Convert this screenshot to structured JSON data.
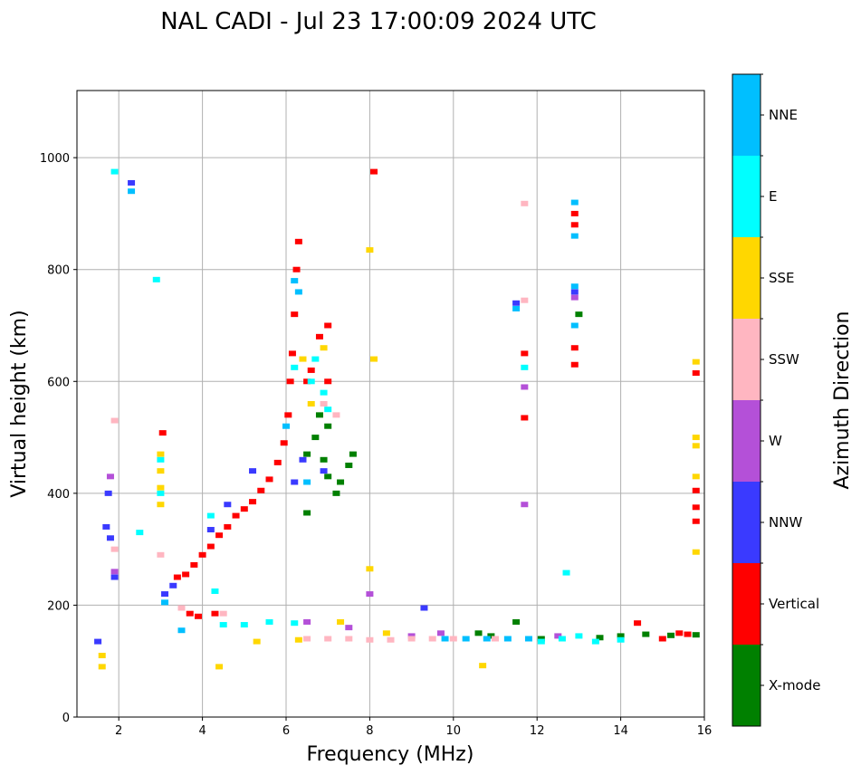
{
  "chart_data": {
    "type": "scatter",
    "title": "NAL CADI - Jul 23 17:00:09 2024 UTC",
    "xlabel": "Frequency (MHz)",
    "ylabel": "Virtual height (km)",
    "xlim": [
      1,
      16
    ],
    "ylim": [
      0,
      1120
    ],
    "xticks": [
      2,
      4,
      6,
      8,
      10,
      12,
      14,
      16
    ],
    "yticks": [
      0,
      200,
      400,
      600,
      800,
      1000
    ],
    "grid": true,
    "colorbar": {
      "title": "Azimuth Direction",
      "categories": [
        {
          "name": "X-mode",
          "color": "#008000"
        },
        {
          "name": "Vertical",
          "color": "#ff0000"
        },
        {
          "name": "NNW",
          "color": "#3a3aff"
        },
        {
          "name": "W",
          "color": "#b450d8"
        },
        {
          "name": "SSW",
          "color": "#ffb6c1"
        },
        {
          "name": "SSE",
          "color": "#ffd700"
        },
        {
          "name": "E",
          "color": "#00ffff"
        },
        {
          "name": "NNE",
          "color": "#00bfff"
        }
      ]
    },
    "series": [
      {
        "name": "Vertical",
        "points": [
          [
            3.05,
            508
          ],
          [
            3.4,
            250
          ],
          [
            3.6,
            255
          ],
          [
            3.8,
            272
          ],
          [
            4.0,
            290
          ],
          [
            4.2,
            305
          ],
          [
            4.4,
            325
          ],
          [
            4.6,
            340
          ],
          [
            4.8,
            360
          ],
          [
            5.0,
            372
          ],
          [
            5.2,
            385
          ],
          [
            5.4,
            405
          ],
          [
            5.6,
            425
          ],
          [
            5.8,
            455
          ],
          [
            5.95,
            490
          ],
          [
            6.05,
            540
          ],
          [
            6.1,
            600
          ],
          [
            6.15,
            650
          ],
          [
            6.2,
            720
          ],
          [
            6.25,
            800
          ],
          [
            6.3,
            850
          ],
          [
            6.5,
            600
          ],
          [
            6.6,
            620
          ],
          [
            6.8,
            680
          ],
          [
            7.0,
            700
          ],
          [
            7.0,
            600
          ],
          [
            8.1,
            975
          ],
          [
            12.9,
            900
          ],
          [
            12.9,
            880
          ],
          [
            12.9,
            660
          ],
          [
            12.9,
            630
          ],
          [
            11.7,
            650
          ],
          [
            11.7,
            535
          ],
          [
            15.8,
            615
          ],
          [
            15.8,
            405
          ],
          [
            15.8,
            375
          ],
          [
            15.8,
            350
          ],
          [
            3.7,
            185
          ],
          [
            3.9,
            180
          ],
          [
            4.3,
            185
          ],
          [
            14.4,
            168
          ],
          [
            15.0,
            140
          ],
          [
            15.4,
            150
          ],
          [
            15.6,
            148
          ]
        ]
      },
      {
        "name": "X-mode",
        "points": [
          [
            6.5,
            470
          ],
          [
            6.7,
            500
          ],
          [
            6.9,
            460
          ],
          [
            7.0,
            430
          ],
          [
            7.2,
            400
          ],
          [
            7.3,
            420
          ],
          [
            7.5,
            450
          ],
          [
            7.6,
            470
          ],
          [
            6.8,
            540
          ],
          [
            7.0,
            520
          ],
          [
            6.5,
            365
          ],
          [
            13.0,
            720
          ],
          [
            11.5,
            170
          ],
          [
            12.1,
            140
          ],
          [
            13.5,
            142
          ],
          [
            14.0,
            145
          ],
          [
            14.6,
            148
          ],
          [
            15.2,
            146
          ],
          [
            15.8,
            147
          ],
          [
            10.6,
            150
          ],
          [
            10.9,
            145
          ]
        ]
      },
      {
        "name": "NNW",
        "points": [
          [
            1.75,
            400
          ],
          [
            1.7,
            340
          ],
          [
            1.8,
            320
          ],
          [
            1.9,
            250
          ],
          [
            2.3,
            955
          ],
          [
            3.1,
            220
          ],
          [
            3.3,
            235
          ],
          [
            4.2,
            335
          ],
          [
            4.6,
            380
          ],
          [
            5.2,
            440
          ],
          [
            6.2,
            420
          ],
          [
            6.4,
            460
          ],
          [
            6.9,
            440
          ],
          [
            9.3,
            195
          ],
          [
            11.5,
            740
          ],
          [
            12.9,
            760
          ],
          [
            1.5,
            135
          ]
        ]
      },
      {
        "name": "W",
        "points": [
          [
            1.8,
            430
          ],
          [
            1.9,
            260
          ],
          [
            6.5,
            170
          ],
          [
            7.5,
            160
          ],
          [
            9.0,
            145
          ],
          [
            9.7,
            150
          ],
          [
            11.7,
            590
          ],
          [
            11.7,
            380
          ],
          [
            12.9,
            750
          ],
          [
            8.0,
            220
          ],
          [
            12.5,
            145
          ]
        ]
      },
      {
        "name": "SSW",
        "points": [
          [
            1.9,
            300
          ],
          [
            6.5,
            140
          ],
          [
            7.0,
            140
          ],
          [
            7.5,
            140
          ],
          [
            8.0,
            138
          ],
          [
            8.5,
            138
          ],
          [
            9.0,
            140
          ],
          [
            9.5,
            140
          ],
          [
            10.0,
            140
          ],
          [
            11.0,
            140
          ],
          [
            11.7,
            745
          ],
          [
            11.7,
            918
          ],
          [
            1.9,
            530
          ],
          [
            3.0,
            290
          ],
          [
            6.9,
            560
          ],
          [
            7.2,
            540
          ],
          [
            3.5,
            195
          ],
          [
            4.5,
            185
          ]
        ]
      },
      {
        "name": "SSE",
        "points": [
          [
            3.0,
            470
          ],
          [
            3.0,
            440
          ],
          [
            3.0,
            410
          ],
          [
            3.0,
            380
          ],
          [
            6.4,
            640
          ],
          [
            6.9,
            660
          ],
          [
            6.6,
            560
          ],
          [
            8.0,
            835
          ],
          [
            8.1,
            640
          ],
          [
            8.0,
            265
          ],
          [
            15.8,
            635
          ],
          [
            15.8,
            500
          ],
          [
            15.8,
            485
          ],
          [
            15.8,
            430
          ],
          [
            15.8,
            295
          ],
          [
            1.6,
            110
          ],
          [
            1.6,
            90
          ],
          [
            10.7,
            92
          ],
          [
            4.4,
            90
          ],
          [
            5.3,
            135
          ],
          [
            6.3,
            138
          ],
          [
            7.3,
            170
          ],
          [
            8.4,
            150
          ]
        ]
      },
      {
        "name": "E",
        "points": [
          [
            3.0,
            460
          ],
          [
            3.0,
            400
          ],
          [
            2.5,
            330
          ],
          [
            2.9,
            782
          ],
          [
            4.2,
            360
          ],
          [
            4.3,
            225
          ],
          [
            6.2,
            625
          ],
          [
            6.6,
            600
          ],
          [
            6.7,
            640
          ],
          [
            6.9,
            580
          ],
          [
            7.0,
            550
          ],
          [
            11.7,
            625
          ],
          [
            12.7,
            258
          ],
          [
            4.5,
            165
          ],
          [
            5.0,
            165
          ],
          [
            5.6,
            170
          ],
          [
            6.2,
            168
          ],
          [
            12.1,
            135
          ],
          [
            12.6,
            140
          ],
          [
            13.0,
            145
          ],
          [
            13.4,
            135
          ],
          [
            14.0,
            138
          ],
          [
            1.9,
            975
          ]
        ]
      },
      {
        "name": "NNE",
        "points": [
          [
            2.3,
            940
          ],
          [
            3.1,
            205
          ],
          [
            6.2,
            780
          ],
          [
            6.3,
            760
          ],
          [
            6.0,
            520
          ],
          [
            6.5,
            420
          ],
          [
            12.9,
            920
          ],
          [
            12.9,
            860
          ],
          [
            12.9,
            770
          ],
          [
            12.9,
            700
          ],
          [
            11.5,
            730
          ],
          [
            9.8,
            140
          ],
          [
            10.3,
            140
          ],
          [
            10.8,
            140
          ],
          [
            11.3,
            140
          ],
          [
            11.8,
            140
          ],
          [
            3.5,
            155
          ]
        ]
      }
    ]
  }
}
